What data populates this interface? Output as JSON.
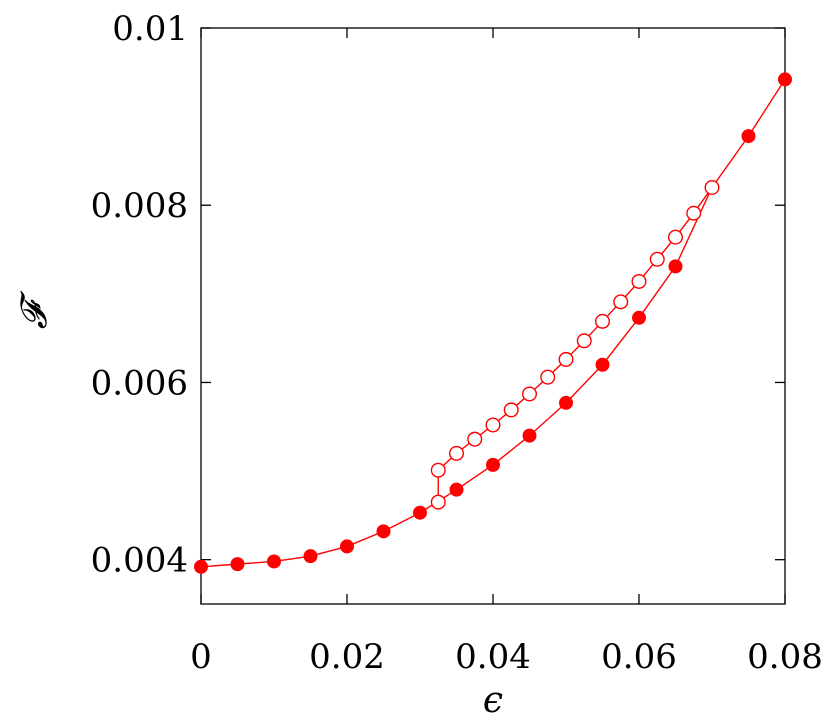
{
  "chart_data": {
    "type": "line",
    "xlabel": "ϵ",
    "ylabel": "𝓕",
    "xlim": [
      0,
      0.08
    ],
    "ylim": [
      0.0035,
      0.01
    ],
    "x_ticks": [
      0,
      0.02,
      0.04,
      0.06,
      0.08
    ],
    "x_tick_labels": [
      "0",
      "0.02",
      "0.04",
      "0.06",
      "0.08"
    ],
    "y_ticks": [
      0.004,
      0.006,
      0.008,
      0.01
    ],
    "y_tick_labels": [
      "0.004",
      "0.006",
      "0.008",
      "0.01"
    ],
    "grid": false,
    "legend": "none",
    "color": "#ff0000",
    "series": [
      {
        "marker": "filled-circle",
        "x": [
          0,
          0.005,
          0.01,
          0.015,
          0.02,
          0.025,
          0.03,
          0.035,
          0.04,
          0.045,
          0.05,
          0.055,
          0.06,
          0.065,
          0.07,
          0.075,
          0.08
        ],
        "y": [
          0.00392,
          0.00395,
          0.00398,
          0.00404,
          0.00415,
          0.00432,
          0.00453,
          0.00479,
          0.00507,
          0.0054,
          0.00577,
          0.0062,
          0.00673,
          0.00731,
          0.0082,
          0.00878,
          0.00942
        ]
      },
      {
        "marker": "open-circle",
        "x": [
          0.0325,
          0.0325,
          0.035,
          0.0375,
          0.04,
          0.0425,
          0.045,
          0.0475,
          0.05,
          0.0525,
          0.055,
          0.0575,
          0.06,
          0.0625,
          0.065,
          0.0675,
          0.07
        ],
        "y": [
          0.00465,
          0.00501,
          0.0052,
          0.00536,
          0.00552,
          0.00569,
          0.00587,
          0.00606,
          0.00626,
          0.00647,
          0.00669,
          0.00691,
          0.00714,
          0.00739,
          0.00764,
          0.00791,
          0.0082
        ]
      }
    ]
  }
}
